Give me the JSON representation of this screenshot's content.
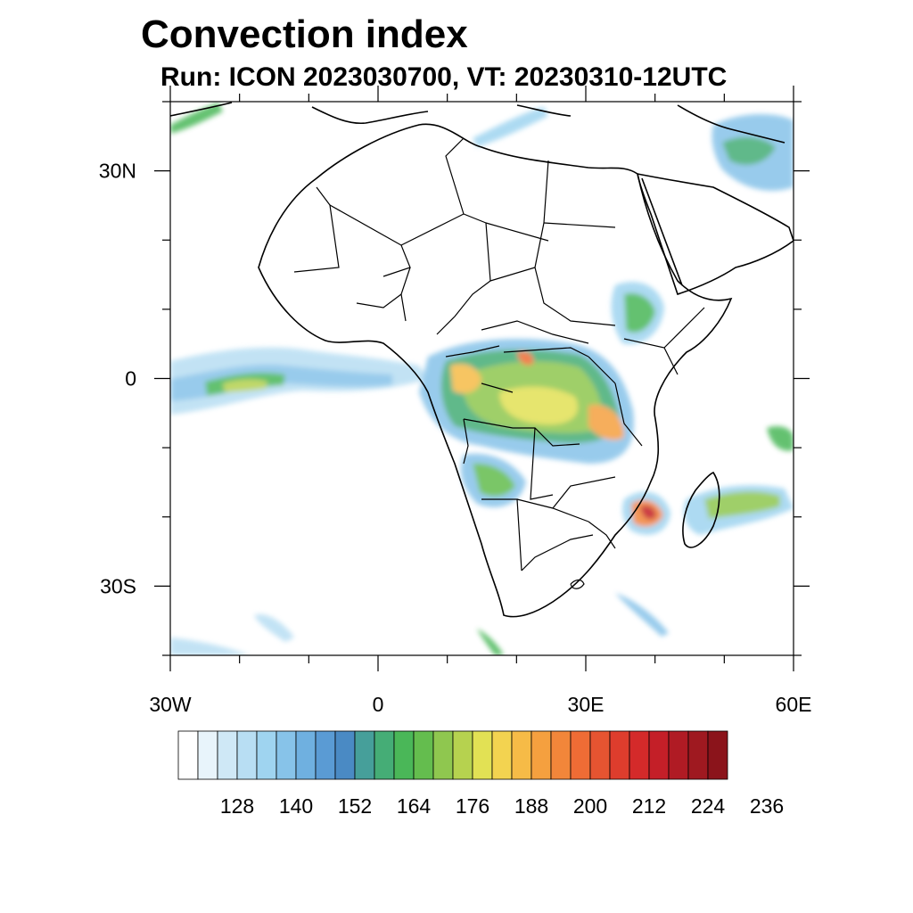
{
  "title": "Convection index",
  "subtitle": "Run: ICON 2023030700,  VT: 20230310-12UTC",
  "map": {
    "lat_labels": [
      {
        "text": "30N",
        "lat": 30
      },
      {
        "text": "0",
        "lat": 0
      },
      {
        "text": "30S",
        "lat": -30
      }
    ],
    "lon_labels": [
      {
        "text": "30W",
        "lon": -30
      },
      {
        "text": "0",
        "lon": 0
      },
      {
        "text": "30E",
        "lon": 30
      },
      {
        "text": "60E",
        "lon": 60
      }
    ],
    "lon_range": [
      -30,
      60
    ],
    "lat_range": [
      -40,
      40
    ]
  },
  "colorbar": {
    "levels": [
      "128",
      "140",
      "152",
      "164",
      "176",
      "188",
      "200",
      "212",
      "224",
      "236"
    ],
    "colors": [
      "#ffffff",
      "#e8f4fb",
      "#cfe8f6",
      "#b8def3",
      "#9fd4f0",
      "#87c3e9",
      "#6fb0e0",
      "#5a9bd4",
      "#4a8ac4",
      "#469f9a",
      "#45ad76",
      "#4ab758",
      "#64bd4e",
      "#8fc74f",
      "#b6d24f",
      "#e2e154",
      "#f3d350",
      "#f6bb47",
      "#f5a03f",
      "#f2863a",
      "#ef6c35",
      "#e65431",
      "#de3d2d",
      "#d42a2a",
      "#c41f28",
      "#b01b24",
      "#9f1920",
      "#8b141b"
    ]
  }
}
